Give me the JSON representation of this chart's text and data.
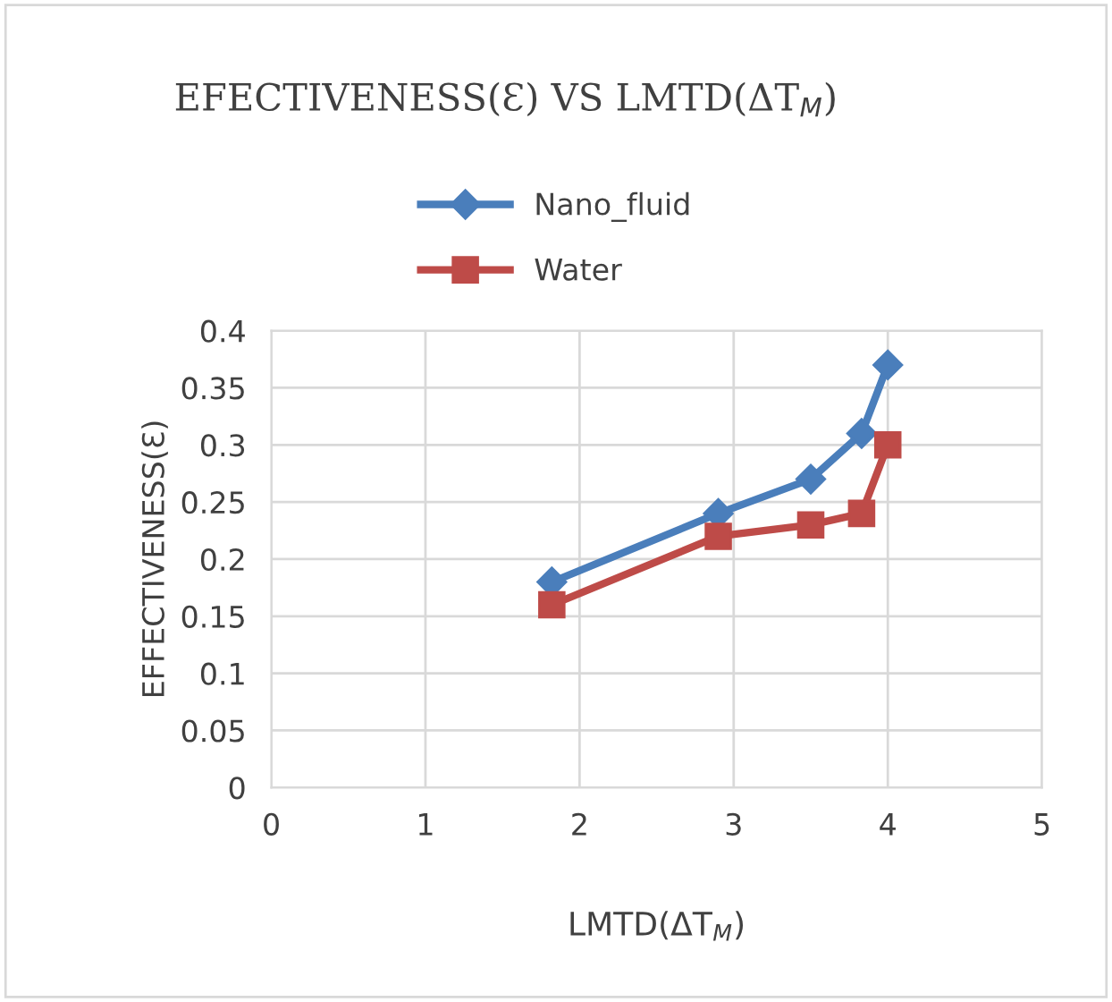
{
  "chart_data": {
    "type": "line",
    "title": "EFECTIVENESS(Ɛ) VS LMTD(ΔT$_{M}$)",
    "xlabel": "LMTD(ΔT$_{M}$)",
    "ylabel": "EFFECTIVENESS(Ɛ)",
    "series": [
      {
        "name": "Nano_fluid",
        "color": "#4a7ebb",
        "marker": "diamond",
        "x": [
          1.82,
          2.9,
          3.5,
          3.83,
          4.0
        ],
        "values": [
          0.18,
          0.24,
          0.27,
          0.31,
          0.37
        ]
      },
      {
        "name": "Water",
        "color": "#be4b48",
        "marker": "square",
        "x": [
          1.82,
          2.9,
          3.5,
          3.83,
          4.0
        ],
        "values": [
          0.16,
          0.22,
          0.23,
          0.24,
          0.3
        ]
      }
    ],
    "xlim": [
      0,
      5
    ],
    "xticks": [
      0,
      1,
      2,
      3,
      4,
      5
    ],
    "ylim": [
      0,
      0.4
    ],
    "yticks": [
      0,
      0.05,
      0.1,
      0.15,
      0.2,
      0.25,
      0.3,
      0.35,
      0.4
    ],
    "grid": true,
    "legend": "top",
    "line_style": "solid"
  }
}
